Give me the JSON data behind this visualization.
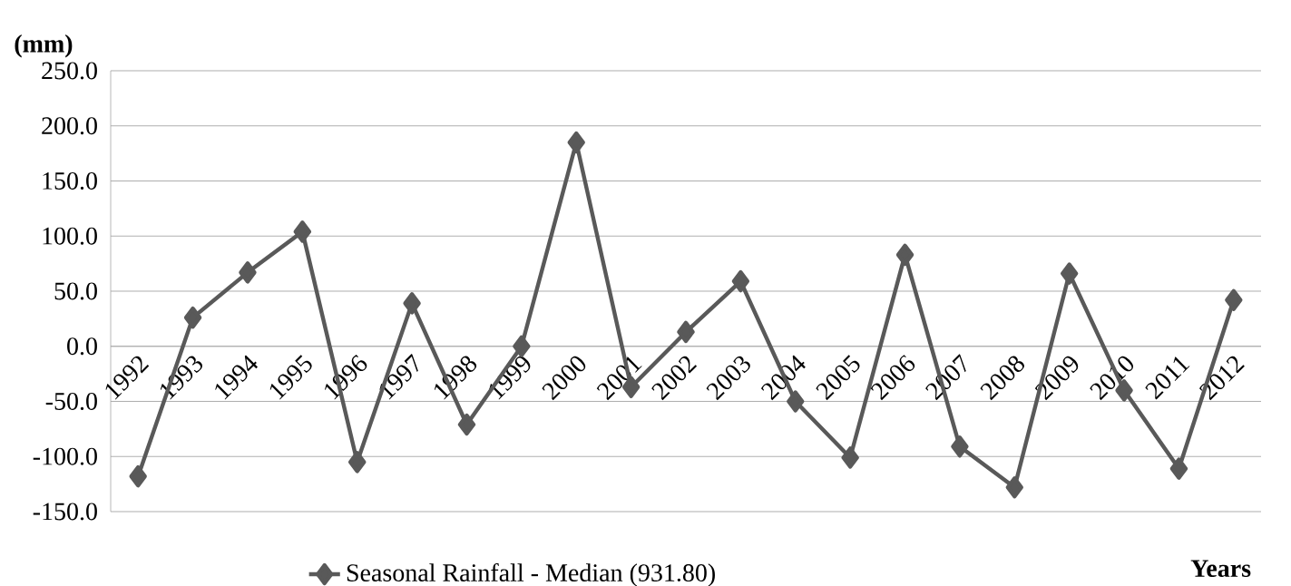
{
  "chart_data": {
    "type": "line",
    "ylabel": "(mm)",
    "xlabel": "Years",
    "categories": [
      "1992",
      "1993",
      "1994",
      "1995",
      "1996",
      "1997",
      "1998",
      "1999",
      "2000",
      "2001",
      "2002",
      "2003",
      "2004",
      "2005",
      "2006",
      "2007",
      "2008",
      "2009",
      "2010",
      "2011",
      "2012"
    ],
    "series": [
      {
        "name": "Seasonal Rainfall - Median (931.80)",
        "color": "#595959",
        "values": [
          -118,
          26,
          67,
          104,
          -105,
          39,
          -71,
          0,
          185,
          -37,
          13,
          59,
          -50,
          -101,
          83,
          -91,
          -128,
          66,
          -40,
          -111,
          42
        ]
      }
    ],
    "ylim": [
      -150,
      250
    ],
    "yticks": [
      {
        "value": -150,
        "label": "-150.0"
      },
      {
        "value": -100,
        "label": "-100.0"
      },
      {
        "value": -50,
        "label": "-50.0"
      },
      {
        "value": 0,
        "label": "0.0"
      },
      {
        "value": 50,
        "label": "50.0"
      },
      {
        "value": 100,
        "label": "100.0"
      },
      {
        "value": 150,
        "label": "150.0"
      },
      {
        "value": 200,
        "label": "200.0"
      },
      {
        "value": 250,
        "label": "250.0"
      }
    ],
    "grid": "y",
    "legend": "bottom",
    "marker": "diamond",
    "line_style": "solid"
  }
}
